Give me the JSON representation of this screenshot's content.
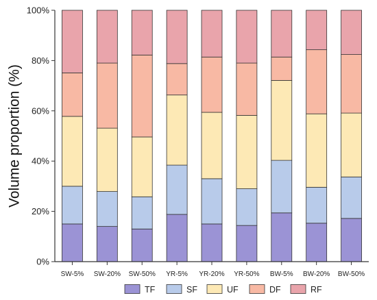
{
  "chart_data": {
    "type": "bar",
    "stacked": true,
    "ylabel": "Volume proportion (%)",
    "xlabel": "",
    "ylim": [
      0,
      100
    ],
    "yticks": [
      "0%",
      "20%",
      "40%",
      "60%",
      "80%",
      "100%"
    ],
    "categories": [
      "SW-5%",
      "SW-20%",
      "SW-50%",
      "YR-5%",
      "YR-20%",
      "YR-50%",
      "BW-5%",
      "BW-20%",
      "BW-50%"
    ],
    "series": [
      {
        "name": "TF",
        "color": "#9b93d5",
        "values": [
          15.0,
          14.0,
          13.0,
          18.8,
          15.0,
          14.4,
          19.4,
          15.3,
          17.2
        ]
      },
      {
        "name": "SF",
        "color": "#b8cbea",
        "values": [
          15.0,
          13.9,
          12.8,
          19.6,
          18.0,
          14.6,
          20.9,
          14.3,
          16.5
        ]
      },
      {
        "name": "UF",
        "color": "#fde9b5",
        "values": [
          27.8,
          25.2,
          23.8,
          27.9,
          26.4,
          29.2,
          31.8,
          29.2,
          25.4
        ]
      },
      {
        "name": "DF",
        "color": "#f8b9a4",
        "values": [
          17.3,
          25.9,
          32.6,
          12.5,
          22.0,
          20.8,
          9.3,
          25.5,
          23.3
        ]
      },
      {
        "name": "RF",
        "color": "#e9a4ab",
        "values": [
          24.9,
          21.0,
          17.8,
          21.2,
          18.6,
          21.0,
          18.6,
          15.7,
          17.6
        ]
      }
    ],
    "grid": false,
    "legend_position": "bottom"
  }
}
